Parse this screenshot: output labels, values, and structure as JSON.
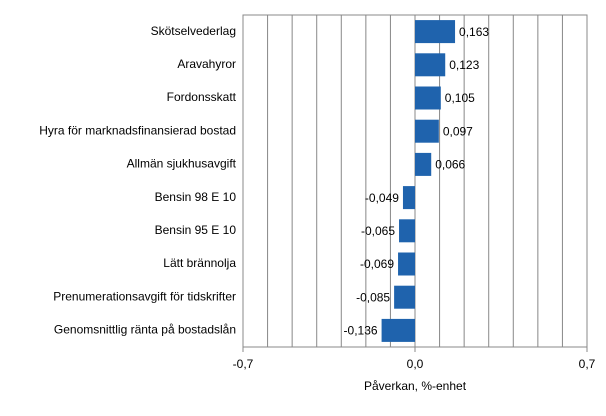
{
  "chart_data": {
    "type": "hbar",
    "categories": [
      "Skötselvederlag",
      "Aravahyror",
      "Fordonsskatt",
      "Hyra för marknadsfinansierad bostad",
      "Allmän sjukhusavgift",
      "Bensin 98 E 10",
      "Bensin 95 E 10",
      "Lätt brännolja",
      "Prenumerationsavgift för tidskrifter",
      "Genomsnittlig ränta på bostadslån"
    ],
    "values": [
      0.163,
      0.123,
      0.105,
      0.097,
      0.066,
      -0.049,
      -0.065,
      -0.069,
      -0.085,
      -0.136
    ],
    "value_labels": [
      "0,163",
      "0,123",
      "0,105",
      "0,097",
      "0,066",
      "-0,049",
      "-0,065",
      "-0,069",
      "-0,085",
      "-0,136"
    ],
    "color": "#1f63ad",
    "xlim": [
      -0.7,
      0.7
    ],
    "xticks": [
      {
        "value": -0.7,
        "label": "-0,7"
      },
      {
        "value": 0,
        "label": "0,0"
      },
      {
        "value": 0.7,
        "label": "0,7"
      }
    ],
    "grid_lines": [
      -0.6,
      -0.5,
      -0.4,
      -0.3,
      -0.2,
      -0.1,
      0.1,
      0.2,
      0.3,
      0.4,
      0.5,
      0.6
    ],
    "grid": true,
    "xlabel": "Påverkan, %-enhet"
  }
}
